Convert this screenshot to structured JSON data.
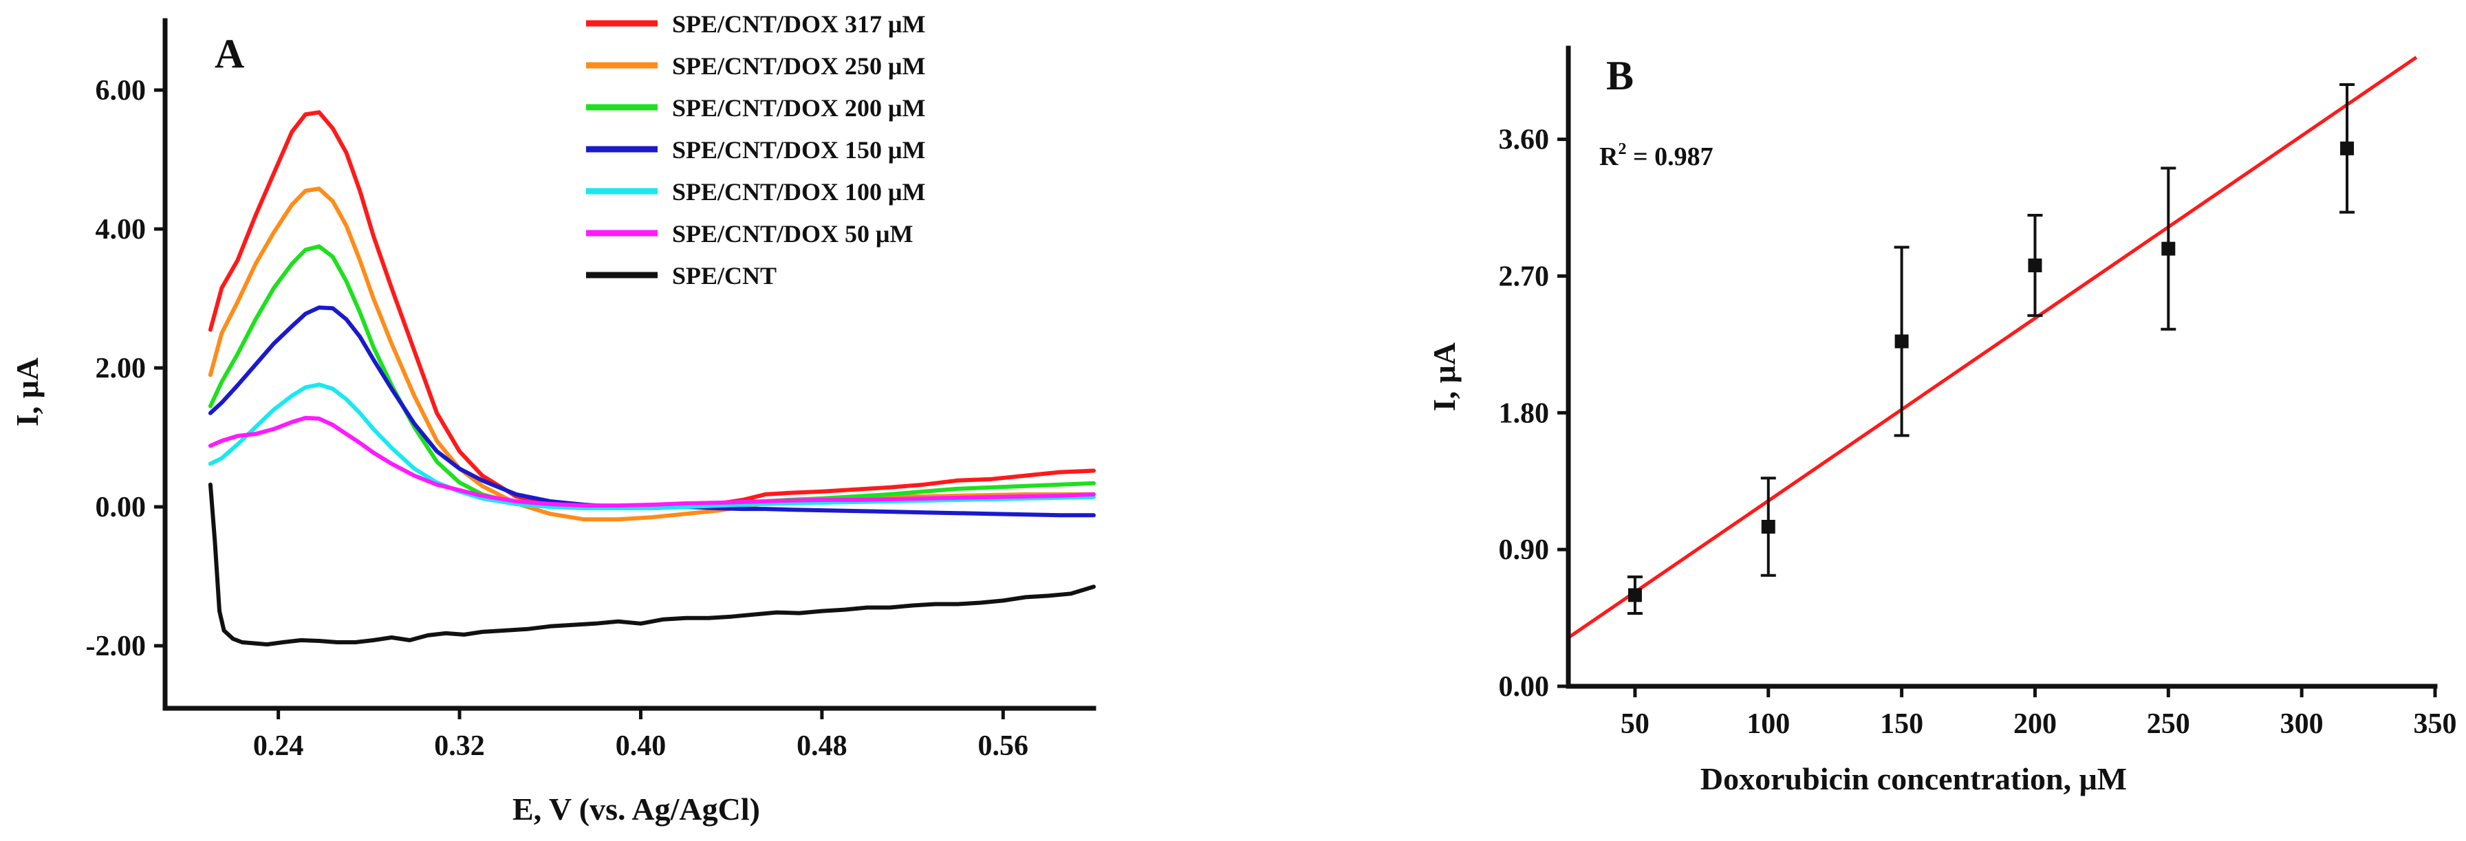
{
  "chart_data": [
    {
      "panel": "A",
      "type": "line",
      "title": "A",
      "xlabel": "E, V (vs. Ag/AgCl)",
      "ylabel": "I, μA",
      "xlim": [
        0.19,
        0.6
      ],
      "ylim": [
        -2.9,
        7.0
      ],
      "xticks": [
        0.24,
        0.32,
        0.4,
        0.48,
        0.56
      ],
      "xtick_labels": [
        "0.24",
        "0.32",
        "0.40",
        "0.48",
        "0.56"
      ],
      "yticks": [
        -2,
        0,
        2,
        4,
        6
      ],
      "ytick_labels": [
        "-2.00",
        "0.00",
        "2.00",
        "4.00",
        "6.00"
      ],
      "legend_position": "top-right",
      "series": [
        {
          "name": "SPE/CNT/DOX 317 μM",
          "color": "#ff1a1a",
          "x": [
            0.21,
            0.215,
            0.222,
            0.23,
            0.238,
            0.246,
            0.252,
            0.258,
            0.264,
            0.27,
            0.276,
            0.282,
            0.29,
            0.3,
            0.31,
            0.32,
            0.33,
            0.345,
            0.36,
            0.375,
            0.39,
            0.405,
            0.42,
            0.435,
            0.445,
            0.455,
            0.465,
            0.48,
            0.495,
            0.51,
            0.525,
            0.54,
            0.555,
            0.57,
            0.585,
            0.6
          ],
          "y": [
            2.55,
            3.15,
            3.55,
            4.2,
            4.8,
            5.4,
            5.65,
            5.68,
            5.45,
            5.1,
            4.55,
            3.9,
            3.15,
            2.25,
            1.35,
            0.8,
            0.45,
            0.15,
            0.05,
            0.0,
            0.0,
            -0.02,
            0.0,
            0.05,
            0.1,
            0.18,
            0.2,
            0.22,
            0.25,
            0.28,
            0.32,
            0.38,
            0.4,
            0.45,
            0.5,
            0.52
          ]
        },
        {
          "name": "SPE/CNT/DOX 250 μM",
          "color": "#ff8c1a",
          "x": [
            0.21,
            0.215,
            0.222,
            0.23,
            0.238,
            0.246,
            0.252,
            0.258,
            0.264,
            0.27,
            0.276,
            0.282,
            0.29,
            0.3,
            0.31,
            0.32,
            0.33,
            0.345,
            0.36,
            0.375,
            0.39,
            0.405,
            0.42,
            0.435,
            0.445,
            0.455,
            0.465,
            0.48,
            0.495,
            0.51,
            0.525,
            0.54,
            0.555,
            0.57,
            0.585,
            0.6
          ],
          "y": [
            1.9,
            2.5,
            2.95,
            3.5,
            3.95,
            4.35,
            4.55,
            4.58,
            4.4,
            4.05,
            3.55,
            3.0,
            2.35,
            1.6,
            0.95,
            0.55,
            0.3,
            0.05,
            -0.1,
            -0.18,
            -0.18,
            -0.15,
            -0.1,
            -0.05,
            0.0,
            0.05,
            0.08,
            0.1,
            0.12,
            0.14,
            0.15,
            0.16,
            0.17,
            0.18,
            0.18,
            0.18
          ]
        },
        {
          "name": "SPE/CNT/DOX 200 μM",
          "color": "#1ee01e",
          "x": [
            0.21,
            0.215,
            0.222,
            0.23,
            0.238,
            0.246,
            0.252,
            0.258,
            0.264,
            0.27,
            0.276,
            0.282,
            0.29,
            0.3,
            0.31,
            0.32,
            0.33,
            0.345,
            0.36,
            0.375,
            0.39,
            0.405,
            0.42,
            0.435,
            0.445,
            0.455,
            0.465,
            0.48,
            0.495,
            0.51,
            0.525,
            0.54,
            0.555,
            0.57,
            0.585,
            0.6
          ],
          "y": [
            1.45,
            1.8,
            2.2,
            2.7,
            3.15,
            3.5,
            3.7,
            3.75,
            3.6,
            3.25,
            2.8,
            2.3,
            1.75,
            1.15,
            0.65,
            0.35,
            0.18,
            0.05,
            0.0,
            0.0,
            0.0,
            0.0,
            0.02,
            0.04,
            0.06,
            0.08,
            0.1,
            0.12,
            0.15,
            0.18,
            0.22,
            0.26,
            0.28,
            0.3,
            0.32,
            0.34
          ]
        },
        {
          "name": "SPE/CNT/DOX 150 μM",
          "color": "#1a1acc",
          "x": [
            0.21,
            0.215,
            0.222,
            0.23,
            0.238,
            0.246,
            0.252,
            0.258,
            0.264,
            0.27,
            0.276,
            0.282,
            0.29,
            0.3,
            0.31,
            0.32,
            0.33,
            0.345,
            0.36,
            0.375,
            0.39,
            0.405,
            0.42,
            0.435,
            0.445,
            0.455,
            0.465,
            0.48,
            0.495,
            0.51,
            0.525,
            0.54,
            0.555,
            0.57,
            0.585,
            0.6
          ],
          "y": [
            1.35,
            1.5,
            1.75,
            2.05,
            2.35,
            2.6,
            2.78,
            2.87,
            2.86,
            2.7,
            2.45,
            2.12,
            1.7,
            1.2,
            0.8,
            0.55,
            0.38,
            0.18,
            0.08,
            0.03,
            0.0,
            0.0,
            0.0,
            -0.02,
            -0.03,
            -0.03,
            -0.04,
            -0.05,
            -0.06,
            -0.07,
            -0.08,
            -0.09,
            -0.1,
            -0.11,
            -0.12,
            -0.12
          ]
        },
        {
          "name": "SPE/CNT/DOX 100 μM",
          "color": "#1ae8f0",
          "x": [
            0.21,
            0.215,
            0.222,
            0.23,
            0.238,
            0.246,
            0.252,
            0.258,
            0.264,
            0.27,
            0.276,
            0.282,
            0.29,
            0.3,
            0.31,
            0.32,
            0.33,
            0.345,
            0.36,
            0.375,
            0.39,
            0.405,
            0.42,
            0.435,
            0.445,
            0.455,
            0.465,
            0.48,
            0.495,
            0.51,
            0.525,
            0.54,
            0.555,
            0.57,
            0.585,
            0.6
          ],
          "y": [
            0.62,
            0.7,
            0.9,
            1.15,
            1.4,
            1.6,
            1.72,
            1.76,
            1.7,
            1.55,
            1.35,
            1.12,
            0.85,
            0.55,
            0.35,
            0.22,
            0.12,
            0.04,
            0.0,
            -0.02,
            -0.02,
            -0.02,
            0.0,
            0.02,
            0.03,
            0.04,
            0.05,
            0.06,
            0.07,
            0.08,
            0.09,
            0.1,
            0.11,
            0.12,
            0.13,
            0.14
          ]
        },
        {
          "name": "SPE/CNT/DOX 50 μM",
          "color": "#ff1aff",
          "x": [
            0.21,
            0.215,
            0.222,
            0.23,
            0.238,
            0.246,
            0.252,
            0.258,
            0.264,
            0.27,
            0.276,
            0.282,
            0.29,
            0.3,
            0.31,
            0.32,
            0.33,
            0.345,
            0.36,
            0.375,
            0.39,
            0.405,
            0.42,
            0.435,
            0.445,
            0.455,
            0.465,
            0.48,
            0.495,
            0.51,
            0.525,
            0.54,
            0.555,
            0.57,
            0.585,
            0.6
          ],
          "y": [
            0.88,
            0.95,
            1.02,
            1.05,
            1.12,
            1.22,
            1.28,
            1.27,
            1.18,
            1.05,
            0.92,
            0.78,
            0.62,
            0.45,
            0.32,
            0.24,
            0.16,
            0.08,
            0.04,
            0.02,
            0.02,
            0.03,
            0.05,
            0.06,
            0.07,
            0.08,
            0.09,
            0.1,
            0.1,
            0.11,
            0.12,
            0.13,
            0.14,
            0.15,
            0.16,
            0.18
          ]
        },
        {
          "name": "SPE/CNT",
          "color": "#111111",
          "x": [
            0.21,
            0.212,
            0.214,
            0.216,
            0.22,
            0.224,
            0.228,
            0.235,
            0.242,
            0.25,
            0.258,
            0.266,
            0.274,
            0.282,
            0.29,
            0.298,
            0.306,
            0.314,
            0.322,
            0.33,
            0.34,
            0.35,
            0.36,
            0.37,
            0.38,
            0.39,
            0.4,
            0.41,
            0.42,
            0.43,
            0.44,
            0.45,
            0.46,
            0.47,
            0.48,
            0.49,
            0.5,
            0.51,
            0.52,
            0.53,
            0.54,
            0.55,
            0.56,
            0.57,
            0.58,
            0.59,
            0.6
          ],
          "y": [
            0.32,
            -0.5,
            -1.5,
            -1.78,
            -1.9,
            -1.95,
            -1.96,
            -1.98,
            -1.95,
            -1.92,
            -1.93,
            -1.95,
            -1.95,
            -1.92,
            -1.88,
            -1.92,
            -1.85,
            -1.82,
            -1.84,
            -1.8,
            -1.78,
            -1.76,
            -1.72,
            -1.7,
            -1.68,
            -1.65,
            -1.68,
            -1.62,
            -1.6,
            -1.6,
            -1.58,
            -1.55,
            -1.52,
            -1.53,
            -1.5,
            -1.48,
            -1.45,
            -1.45,
            -1.42,
            -1.4,
            -1.4,
            -1.38,
            -1.35,
            -1.3,
            -1.28,
            -1.25,
            -1.15
          ]
        }
      ]
    },
    {
      "panel": "B",
      "type": "scatter",
      "title": "B",
      "xlabel": "Doxorubicin concentration, μM",
      "ylabel": "I,  μA",
      "xlim": [
        25,
        350
      ],
      "ylim": [
        0,
        4.2
      ],
      "xticks": [
        50,
        100,
        150,
        200,
        250,
        300,
        350
      ],
      "xtick_labels": [
        "50",
        "100",
        "150",
        "200",
        "250",
        "300",
        "350"
      ],
      "yticks": [
        0,
        0.9,
        1.8,
        2.7,
        3.6
      ],
      "ytick_labels": [
        "0.00",
        "0.90",
        "1.80",
        "2.70",
        "3.60"
      ],
      "annotation": {
        "r2_prefix": "R",
        "r2_exp": "2",
        "r2_value": " = 0.987"
      },
      "points": {
        "x": [
          50,
          100,
          150,
          200,
          250,
          317
        ],
        "y": [
          0.6,
          1.05,
          2.27,
          2.77,
          2.88,
          3.54
        ],
        "err": [
          0.12,
          0.32,
          0.62,
          0.33,
          0.53,
          0.42
        ]
      },
      "fit": {
        "type": "linear",
        "color": "#ff1a1a",
        "x": [
          25,
          343
        ],
        "y": [
          0.32,
          4.14
        ]
      }
    }
  ]
}
